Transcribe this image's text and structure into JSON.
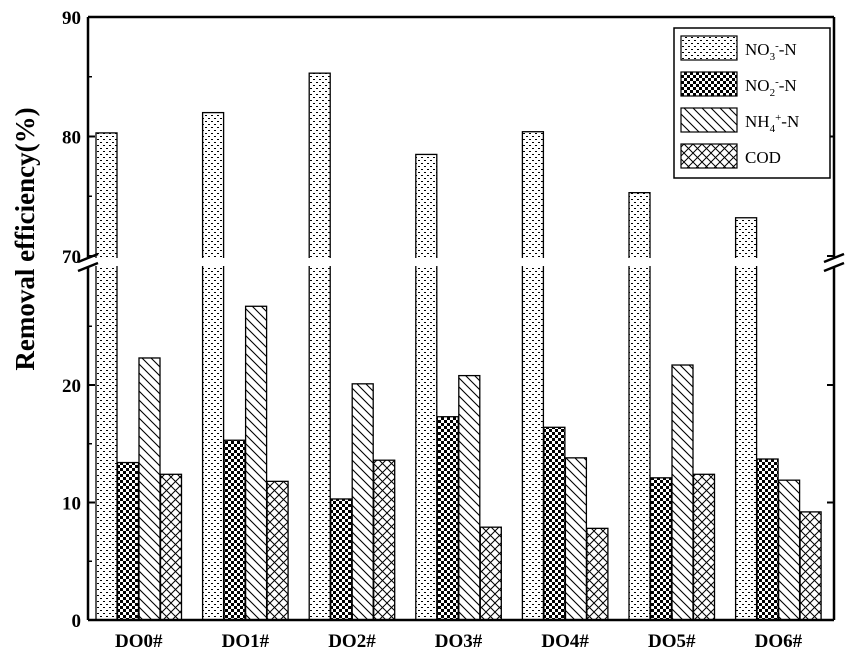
{
  "chart_data": {
    "type": "bar",
    "title": "",
    "xlabel": "",
    "ylabel": "Removal efficiency(%)",
    "categories": [
      "DO0#",
      "DO1#",
      "DO2#",
      "DO3#",
      "DO4#",
      "DO5#",
      "DO6#"
    ],
    "axis_break": {
      "lower_range": [
        0,
        30
      ],
      "upper_range": [
        70,
        90
      ]
    },
    "yticks_lower": [
      "0",
      "10",
      "20"
    ],
    "yticks_upper": [
      "70",
      "80",
      "90"
    ],
    "legend_position": "top-right",
    "series": [
      {
        "name": "NO3--N",
        "label_parts": [
          [
            "NO",
            ""
          ],
          [
            "3",
            "sub"
          ],
          [
            "-",
            "sup"
          ],
          [
            "-N",
            ""
          ]
        ],
        "pattern": "dots",
        "values": [
          80.3,
          82.0,
          85.3,
          78.5,
          80.4,
          75.3,
          73.2
        ]
      },
      {
        "name": "NO2--N",
        "label_parts": [
          [
            "NO",
            ""
          ],
          [
            "2",
            "sub"
          ],
          [
            "-",
            "sup"
          ],
          [
            "-N",
            ""
          ]
        ],
        "pattern": "checker",
        "values": [
          13.4,
          15.3,
          10.3,
          17.3,
          16.4,
          12.1,
          13.7
        ]
      },
      {
        "name": "NH4+-N",
        "label_parts": [
          [
            "NH",
            ""
          ],
          [
            "4",
            "sub"
          ],
          [
            "+",
            "sup"
          ],
          [
            "-N",
            ""
          ]
        ],
        "pattern": "backslash",
        "values": [
          22.3,
          26.7,
          20.1,
          20.8,
          13.8,
          21.7,
          11.9
        ]
      },
      {
        "name": "COD",
        "label_parts": [
          [
            "COD",
            ""
          ]
        ],
        "pattern": "crosshatch",
        "values": [
          12.4,
          11.8,
          13.6,
          7.9,
          7.8,
          12.4,
          9.2
        ]
      }
    ]
  }
}
